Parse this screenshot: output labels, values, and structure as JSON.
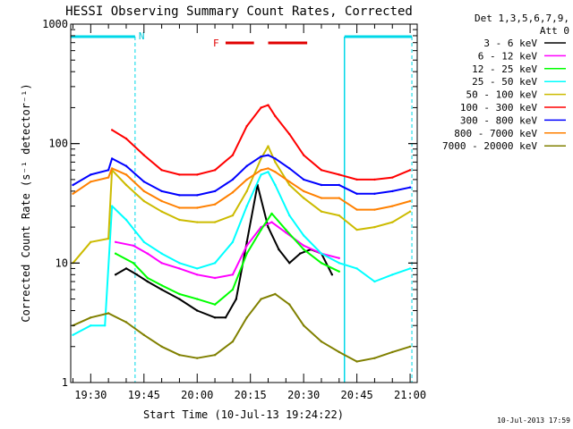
{
  "chart_data": {
    "type": "line",
    "title": "HESSI Observing Summary Count Rates, Corrected",
    "xlabel": "Start Time (10-Jul-13 19:24:22)",
    "ylabel": "Corrected Count Rate (s⁻¹ detector⁻¹)",
    "y_scale": "log",
    "ylim": [
      1,
      1000
    ],
    "y_ticks": [
      1,
      10,
      100,
      1000
    ],
    "y_tick_labels": [
      "1",
      "10",
      "100",
      "1000"
    ],
    "xlim": [
      "19:24:22",
      "21:02:00"
    ],
    "x_ticks": [
      "19:30",
      "19:45",
      "20:00",
      "20:15",
      "20:30",
      "20:45",
      "21:00"
    ],
    "grid": false,
    "legend_position": "right",
    "legend_header": [
      "Det 1,3,5,6,7,9,",
      "Att 0"
    ],
    "timestamp": "10-Jul-2013 17:59",
    "markers": {
      "night_label": "N",
      "night_intervals": [
        [
          "19:24:22",
          "19:42:30"
        ],
        [
          "20:41:30",
          "21:00:30"
        ]
      ],
      "flare_label": "F",
      "flare_intervals": [
        [
          "20:08:00",
          "20:16:00"
        ],
        [
          "20:20:00",
          "20:31:00"
        ]
      ]
    },
    "series": [
      {
        "name": "3 - 6 keV",
        "color": "#000000",
        "x": [
          "19:37",
          "19:40",
          "19:43",
          "19:46",
          "19:50",
          "19:55",
          "20:00",
          "20:05",
          "20:08",
          "20:11",
          "20:14",
          "20:17",
          "20:20",
          "20:23",
          "20:26",
          "20:29",
          "20:32",
          "20:35",
          "20:38"
        ],
        "y": [
          8,
          9,
          8,
          7,
          6,
          5,
          4,
          3.5,
          3.5,
          5,
          15,
          45,
          20,
          13,
          10,
          12,
          13,
          12,
          8
        ]
      },
      {
        "name": "6 - 12 keV",
        "color": "#ff00ff",
        "x": [
          "19:37",
          "19:42",
          "19:46",
          "19:50",
          "19:55",
          "20:00",
          "20:05",
          "20:10",
          "20:14",
          "20:18",
          "20:21",
          "20:25",
          "20:30",
          "20:35",
          "20:40"
        ],
        "y": [
          15,
          14,
          12,
          10,
          9,
          8,
          7.5,
          8,
          14,
          20,
          22,
          18,
          14,
          12,
          11
        ]
      },
      {
        "name": "12 - 25 keV",
        "color": "#00ff00",
        "x": [
          "19:37",
          "19:42",
          "19:46",
          "19:50",
          "19:55",
          "20:00",
          "20:05",
          "20:10",
          "20:14",
          "20:18",
          "20:21",
          "20:25",
          "20:30",
          "20:35",
          "20:40"
        ],
        "y": [
          12,
          10,
          7.5,
          6.5,
          5.5,
          5,
          4.5,
          6,
          12,
          19,
          26,
          19,
          13,
          10,
          8.5
        ]
      },
      {
        "name": "25 - 50 keV",
        "color": "#00ffff",
        "x": [
          "19:25",
          "19:30",
          "19:34",
          "19:36",
          "19:40",
          "19:45",
          "19:50",
          "19:55",
          "20:00",
          "20:05",
          "20:10",
          "20:14",
          "20:18",
          "20:20",
          "20:22",
          "20:26",
          "20:30",
          "20:35",
          "20:40",
          "20:45",
          "20:50",
          "20:55",
          "21:00"
        ],
        "y": [
          2.5,
          3,
          3,
          30,
          23,
          15,
          12,
          10,
          9,
          10,
          15,
          30,
          55,
          58,
          45,
          25,
          17,
          12,
          10,
          9,
          7,
          8,
          9
        ]
      },
      {
        "name": "50 - 100 keV",
        "color": "#ccbb00",
        "x": [
          "19:25",
          "19:30",
          "19:35",
          "19:36",
          "19:40",
          "19:45",
          "19:50",
          "19:55",
          "20:00",
          "20:05",
          "20:10",
          "20:14",
          "20:18",
          "20:20",
          "20:22",
          "20:26",
          "20:30",
          "20:35",
          "20:40",
          "20:45",
          "20:50",
          "20:55",
          "21:00"
        ],
        "y": [
          10,
          15,
          16,
          60,
          45,
          33,
          27,
          23,
          22,
          22,
          25,
          40,
          75,
          95,
          70,
          45,
          35,
          27,
          25,
          19,
          20,
          22,
          27
        ]
      },
      {
        "name": "100 - 300 keV",
        "color": "#ff0000",
        "x": [
          "19:36",
          "19:40",
          "19:45",
          "19:50",
          "19:55",
          "20:00",
          "20:05",
          "20:10",
          "20:14",
          "20:18",
          "20:20",
          "20:22",
          "20:26",
          "20:30",
          "20:35",
          "20:40",
          "20:45",
          "20:50",
          "20:55",
          "21:00"
        ],
        "y": [
          130,
          110,
          80,
          60,
          55,
          55,
          60,
          80,
          140,
          200,
          210,
          170,
          120,
          80,
          60,
          55,
          50,
          50,
          52,
          60
        ]
      },
      {
        "name": "300 - 800 keV",
        "color": "#0000ff",
        "x": [
          "19:25",
          "19:30",
          "19:35",
          "19:36",
          "19:40",
          "19:45",
          "19:50",
          "19:55",
          "20:00",
          "20:05",
          "20:10",
          "20:14",
          "20:18",
          "20:20",
          "20:22",
          "20:26",
          "20:30",
          "20:35",
          "20:40",
          "20:45",
          "20:50",
          "20:55",
          "21:00"
        ],
        "y": [
          45,
          55,
          60,
          75,
          65,
          48,
          40,
          37,
          37,
          40,
          50,
          65,
          78,
          80,
          75,
          62,
          50,
          45,
          45,
          38,
          38,
          40,
          43
        ]
      },
      {
        "name": "800 - 7000 keV",
        "color": "#ff8000",
        "x": [
          "19:25",
          "19:30",
          "19:35",
          "19:36",
          "19:40",
          "19:45",
          "19:50",
          "19:55",
          "20:00",
          "20:05",
          "20:10",
          "20:14",
          "20:18",
          "20:20",
          "20:22",
          "20:26",
          "20:30",
          "20:35",
          "20:40",
          "20:45",
          "20:50",
          "20:55",
          "21:00"
        ],
        "y": [
          38,
          48,
          52,
          62,
          55,
          40,
          33,
          29,
          29,
          31,
          39,
          50,
          60,
          62,
          58,
          48,
          40,
          35,
          35,
          28,
          28,
          30,
          33
        ]
      },
      {
        "name": "7000 - 20000 keV",
        "color": "#808000",
        "x": [
          "19:25",
          "19:30",
          "19:35",
          "19:40",
          "19:45",
          "19:50",
          "19:55",
          "20:00",
          "20:05",
          "20:10",
          "20:14",
          "20:18",
          "20:22",
          "20:26",
          "20:30",
          "20:35",
          "20:40",
          "20:45",
          "20:50",
          "20:55",
          "21:00"
        ],
        "y": [
          3,
          3.5,
          3.8,
          3.2,
          2.5,
          2,
          1.7,
          1.6,
          1.7,
          2.2,
          3.5,
          5,
          5.5,
          4.5,
          3,
          2.2,
          1.8,
          1.5,
          1.6,
          1.8,
          2
        ]
      }
    ]
  }
}
